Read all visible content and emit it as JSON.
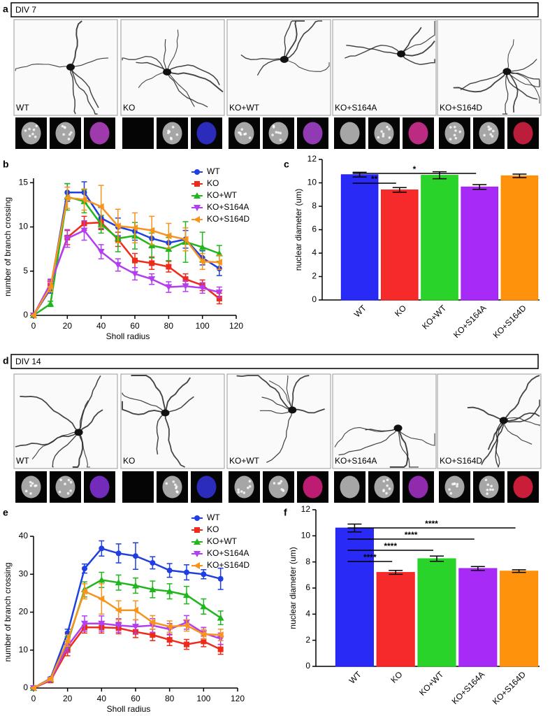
{
  "figure": {
    "sections": [
      {
        "panel_label": "a",
        "title": "DIV 7",
        "image_labels": [
          "WT",
          "KO",
          "KO+WT",
          "KO+S164A",
          "KO+S164D"
        ]
      },
      {
        "panel_label": "d",
        "title": "DIV 14",
        "image_labels": [
          "WT",
          "KO",
          "KO+WT",
          "KO+S164A",
          "KO+S164D"
        ]
      }
    ]
  },
  "chart_data": [
    {
      "type": "line",
      "panel_label": "b",
      "xlabel": "Sholl radius",
      "ylabel": "number of branch crossing",
      "x": [
        0,
        10,
        20,
        30,
        40,
        50,
        60,
        70,
        80,
        90,
        100,
        110
      ],
      "xlim": [
        0,
        120
      ],
      "xticks": [
        0,
        20,
        40,
        60,
        80,
        100,
        120
      ],
      "ylim": [
        0,
        15.5
      ],
      "yticks": [
        0,
        5,
        10,
        15
      ],
      "series": [
        {
          "name": "WT",
          "color": "#1f3fe0",
          "marker": "circle",
          "values": [
            0,
            3,
            13.9,
            13.9,
            11,
            10,
            9.5,
            8.7,
            8.2,
            8.6,
            6.5,
            5.3
          ],
          "errors": [
            0,
            0.5,
            1,
            1.2,
            1.2,
            1,
            1,
            1,
            0.9,
            1,
            0.8,
            0.8
          ]
        },
        {
          "name": "KO",
          "color": "#f02a1a",
          "marker": "square",
          "values": [
            0,
            3.5,
            8.8,
            10.4,
            10.5,
            8.6,
            6.2,
            5.9,
            5.5,
            4.1,
            3.4,
            1.9
          ],
          "errors": [
            0,
            0.5,
            0.8,
            0.8,
            0.8,
            0.8,
            0.8,
            0.7,
            0.6,
            0.6,
            0.6,
            0.6
          ]
        },
        {
          "name": "KO+WT",
          "color": "#22b61e",
          "marker": "triangle-up",
          "values": [
            0,
            1.3,
            13.4,
            12.9,
            10.3,
            8.7,
            9,
            7.9,
            7.5,
            8.3,
            7.7,
            7
          ],
          "errors": [
            0,
            0.3,
            1.5,
            1.3,
            1,
            1.5,
            1.5,
            1.4,
            1.3,
            2.3,
            1.7,
            0.9
          ]
        },
        {
          "name": "KO+S164A",
          "color": "#b23ef0",
          "marker": "triangle-down",
          "values": [
            0,
            3.6,
            8.7,
            9.6,
            7.2,
            5.7,
            4.7,
            4.1,
            3.2,
            3.3,
            3.1,
            2.6
          ],
          "errors": [
            0,
            0.5,
            1,
            1.1,
            0.8,
            0.7,
            0.7,
            0.6,
            0.6,
            0.6,
            0.6,
            0.6
          ]
        },
        {
          "name": "KO+S164D",
          "color": "#f7941d",
          "marker": "triangle-left",
          "values": [
            0,
            3.2,
            13.3,
            13.1,
            12.3,
            10.1,
            9.9,
            9.6,
            9,
            8.6,
            6.1,
            6
          ],
          "errors": [
            0,
            0.5,
            1.2,
            1.2,
            2.4,
            1.9,
            1.7,
            1.6,
            1.4,
            1.3,
            0.9,
            0.8
          ]
        }
      ]
    },
    {
      "type": "bar",
      "panel_label": "c",
      "ylabel": "nuclear diameter (um)",
      "categories": [
        "WT",
        "KO",
        "KO+WT",
        "KO+S164A",
        "KO+S164D"
      ],
      "values": [
        10.7,
        9.4,
        10.65,
        9.65,
        10.6
      ],
      "errors": [
        0.2,
        0.2,
        0.3,
        0.2,
        0.15
      ],
      "colors": [
        "#1f1ff5",
        "#f51f1f",
        "#1fd11f",
        "#a31ff5",
        "#ff8c00"
      ],
      "ylim": [
        0,
        12
      ],
      "yticks": [
        0,
        2,
        4,
        6,
        8,
        10,
        12
      ],
      "annotations": [
        {
          "label": "**",
          "between": [
            "WT",
            "KO"
          ]
        },
        {
          "label": "*",
          "between": [
            "WT",
            "KO+S164A"
          ]
        }
      ]
    },
    {
      "type": "line",
      "panel_label": "e",
      "xlabel": "Sholl radius",
      "ylabel": "number of branch crossing",
      "x": [
        0,
        10,
        20,
        30,
        40,
        50,
        60,
        70,
        80,
        90,
        100,
        110
      ],
      "xlim": [
        0,
        120
      ],
      "xticks": [
        0,
        20,
        40,
        60,
        80,
        100,
        120
      ],
      "ylim": [
        0,
        40
      ],
      "yticks": [
        0,
        10,
        20,
        30,
        40
      ],
      "series": [
        {
          "name": "WT",
          "color": "#1f3fe0",
          "marker": "circle",
          "values": [
            0,
            2.5,
            14.5,
            31.5,
            36.8,
            35.5,
            34.8,
            33,
            31,
            30.5,
            30,
            28.8
          ],
          "errors": [
            0,
            0.4,
            1,
            1.2,
            2,
            2.5,
            3.5,
            1.6,
            1.8,
            2,
            1.2,
            2.8
          ]
        },
        {
          "name": "KO",
          "color": "#f02a1a",
          "marker": "square",
          "values": [
            0,
            2,
            10,
            16,
            16,
            15.8,
            14.8,
            14,
            12.7,
            11.5,
            12.3,
            10.2
          ],
          "errors": [
            0,
            0.4,
            1.5,
            1.5,
            1.5,
            1.5,
            1.5,
            1.5,
            1.5,
            1.3,
            1.4,
            1.3
          ]
        },
        {
          "name": "KO+WT",
          "color": "#22b61e",
          "marker": "triangle-up",
          "values": [
            0,
            2.3,
            12,
            26,
            28.5,
            27.8,
            27,
            26,
            25.5,
            24.5,
            21.5,
            18.5
          ],
          "errors": [
            0,
            0.4,
            1.5,
            2,
            2,
            2,
            2,
            2.2,
            2,
            2.3,
            2,
            1.8
          ]
        },
        {
          "name": "KO+S164A",
          "color": "#b23ef0",
          "marker": "triangle-down",
          "values": [
            0,
            2.2,
            11,
            17,
            17,
            16.5,
            16.2,
            16.5,
            15.5,
            17.3,
            14.5,
            13
          ],
          "errors": [
            0,
            0.4,
            1.5,
            2,
            2,
            1.8,
            1.8,
            1.8,
            1.5,
            1.8,
            1.5,
            1.5
          ]
        },
        {
          "name": "KO+S164D",
          "color": "#f7941d",
          "marker": "triangle-left",
          "values": [
            0,
            2.4,
            12.5,
            25.5,
            23.5,
            20.5,
            20.5,
            17.3,
            16.2,
            16.5,
            14.2,
            14
          ],
          "errors": [
            0,
            0.4,
            1.5,
            2,
            4,
            2.5,
            2.5,
            1.8,
            1.5,
            1.5,
            1.3,
            1.5
          ]
        }
      ]
    },
    {
      "type": "bar",
      "panel_label": "f",
      "ylabel": "nuclear diameter (um)",
      "categories": [
        "WT",
        "KO",
        "KO+WT",
        "KO+S164A",
        "KO+S164D"
      ],
      "values": [
        10.6,
        7.2,
        8.25,
        7.5,
        7.3
      ],
      "errors": [
        0.3,
        0.15,
        0.2,
        0.15,
        0.1
      ],
      "colors": [
        "#1f1ff5",
        "#f51f1f",
        "#1fd11f",
        "#a31ff5",
        "#ff8c00"
      ],
      "ylim": [
        0,
        12
      ],
      "yticks": [
        0,
        2,
        4,
        6,
        8,
        10,
        12
      ],
      "annotations": [
        {
          "label": "****",
          "between": [
            "WT",
            "KO"
          ]
        },
        {
          "label": "****",
          "between": [
            "WT",
            "KO+WT"
          ]
        },
        {
          "label": "****",
          "between": [
            "WT",
            "KO+S164A"
          ]
        },
        {
          "label": "****",
          "between": [
            "WT",
            "KO+S164D"
          ]
        }
      ]
    }
  ]
}
